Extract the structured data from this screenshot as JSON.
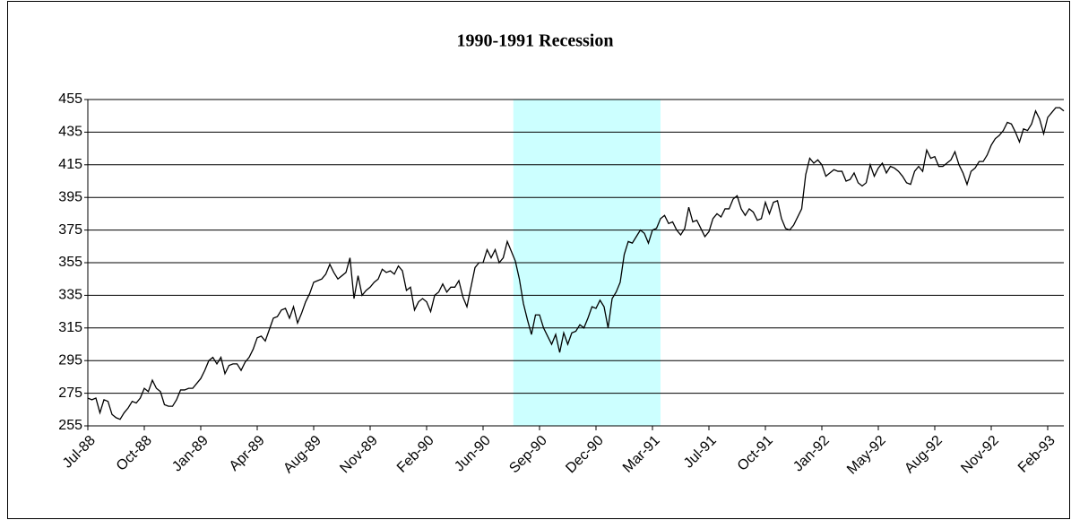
{
  "chart_data": {
    "type": "line",
    "title": "1990-1991 Recession",
    "categories": [
      "Jul-88",
      null,
      null,
      null,
      null,
      null,
      null,
      null,
      null,
      null,
      null,
      null,
      null,
      null,
      "Oct-88",
      null,
      null,
      null,
      null,
      null,
      null,
      null,
      null,
      null,
      null,
      null,
      null,
      null,
      "Jan-89",
      null,
      null,
      null,
      null,
      null,
      null,
      null,
      null,
      null,
      null,
      null,
      null,
      null,
      "Apr-89",
      null,
      null,
      null,
      null,
      null,
      null,
      null,
      null,
      null,
      null,
      null,
      null,
      null,
      "Aug-89",
      null,
      null,
      null,
      null,
      null,
      null,
      null,
      null,
      null,
      null,
      null,
      null,
      null,
      "Nov-89",
      null,
      null,
      null,
      null,
      null,
      null,
      null,
      null,
      null,
      null,
      null,
      null,
      null,
      "Feb-90",
      null,
      null,
      null,
      null,
      null,
      null,
      null,
      null,
      null,
      null,
      null,
      null,
      null,
      "Jun-90",
      null,
      null,
      null,
      null,
      null,
      null,
      null,
      null,
      null,
      null,
      null,
      null,
      null,
      "Sep-90",
      null,
      null,
      null,
      null,
      null,
      null,
      null,
      null,
      null,
      null,
      null,
      null,
      null,
      "Dec-90",
      null,
      null,
      null,
      null,
      null,
      null,
      null,
      null,
      null,
      null,
      null,
      null,
      null,
      "Mar-91",
      null,
      null,
      null,
      null,
      null,
      null,
      null,
      null,
      null,
      null,
      null,
      null,
      null,
      "Jul-91",
      null,
      null,
      null,
      null,
      null,
      null,
      null,
      null,
      null,
      null,
      null,
      null,
      null,
      "Oct-91",
      null,
      null,
      null,
      null,
      null,
      null,
      null,
      null,
      null,
      null,
      null,
      null,
      null,
      "Jan-92",
      null,
      null,
      null,
      null,
      null,
      null,
      null,
      null,
      null,
      null,
      null,
      null,
      null,
      "May-92",
      null,
      null,
      null,
      null,
      null,
      null,
      null,
      null,
      null,
      null,
      null,
      null,
      null,
      "Aug-92",
      null,
      null,
      null,
      null,
      null,
      null,
      null,
      null,
      null,
      null,
      null,
      null,
      null,
      "Nov-92",
      null,
      null,
      null,
      null,
      null,
      null,
      null,
      null,
      null,
      null,
      null,
      null,
      null,
      "Feb-93",
      null,
      null,
      null,
      null
    ],
    "values": [
      272,
      271,
      272,
      263,
      271,
      270,
      262,
      260,
      259,
      263,
      266,
      270,
      269,
      272,
      278,
      276,
      283,
      278,
      276,
      268,
      267,
      267,
      271,
      277,
      277,
      278,
      278,
      281,
      284,
      289,
      295,
      297,
      293,
      297,
      287,
      292,
      293,
      293,
      289,
      294,
      297,
      302,
      309,
      310,
      307,
      314,
      321,
      322,
      326,
      327,
      321,
      328,
      318,
      324,
      331,
      336,
      343,
      344,
      345,
      348,
      354,
      349,
      345,
      347,
      349,
      358,
      333,
      347,
      335,
      338,
      340,
      343,
      345,
      351,
      349,
      350,
      348,
      353,
      350,
      338,
      340,
      326,
      331,
      333,
      331,
      325,
      335,
      337,
      342,
      337,
      340,
      340,
      344,
      334,
      328,
      340,
      352,
      355,
      355,
      363,
      358,
      363,
      355,
      358,
      368,
      362,
      356,
      345,
      330,
      320,
      311,
      323,
      323,
      315,
      310,
      305,
      311,
      300,
      312,
      305,
      312,
      313,
      317,
      315,
      321,
      328,
      327,
      332,
      328,
      315,
      333,
      337,
      343,
      360,
      368,
      367,
      371,
      375,
      373,
      367,
      375,
      376,
      382,
      384,
      379,
      380,
      375,
      372,
      376,
      389,
      380,
      381,
      376,
      371,
      374,
      382,
      385,
      383,
      388,
      388,
      394,
      396,
      388,
      384,
      388,
      386,
      381,
      382,
      392,
      385,
      392,
      393,
      382,
      376,
      375,
      378,
      383,
      388,
      409,
      419,
      416,
      418,
      415,
      408,
      410,
      412,
      411,
      411,
      405,
      406,
      410,
      404,
      402,
      404,
      415,
      408,
      413,
      416,
      410,
      414,
      413,
      411,
      408,
      404,
      403,
      411,
      414,
      411,
      424,
      419,
      420,
      414,
      414,
      416,
      418,
      423,
      415,
      410,
      403,
      411,
      413,
      417,
      417,
      421,
      427,
      431,
      433,
      436,
      441,
      440,
      435,
      429,
      437,
      436,
      440,
      448,
      443,
      434,
      444,
      447,
      450,
      450,
      448
    ],
    "color": "#000000",
    "highlight": {
      "x": [
        105.5,
        142
      ],
      "color": "#ccffff"
    },
    "ylim": [
      255,
      455
    ],
    "yticks": [
      255,
      275,
      295,
      315,
      335,
      355,
      375,
      395,
      415,
      435,
      455
    ],
    "grid": true
  }
}
